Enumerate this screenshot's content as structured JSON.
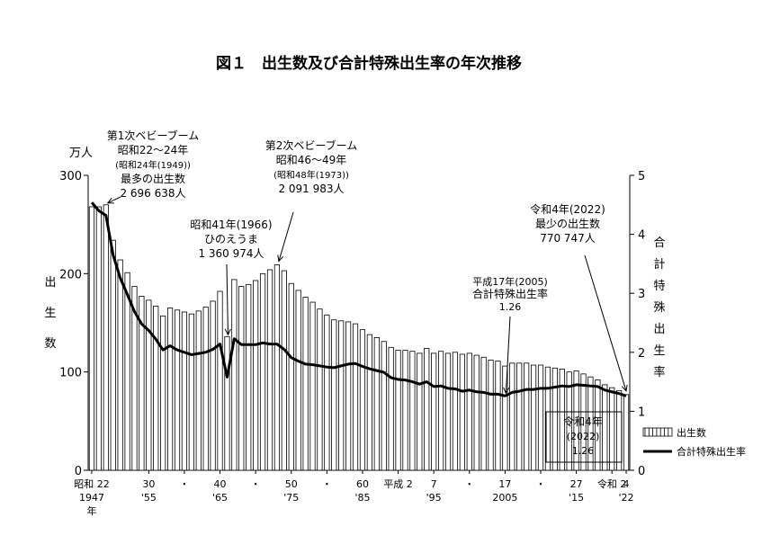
{
  "chart_data": {
    "type": "bar+line",
    "title": "図１　出生数及び合計特殊出生率の年次推移",
    "y_left": {
      "unit": "万人",
      "label": [
        "出",
        "生",
        "数"
      ],
      "range": [
        0,
        300
      ],
      "ticks": [
        "0",
        "100",
        "200",
        "300"
      ]
    },
    "y_right": {
      "label": [
        "合",
        "計",
        "特",
        "殊",
        "出",
        "生",
        "率"
      ],
      "range": [
        0,
        5
      ],
      "ticks": [
        "0",
        "1",
        "2",
        "3",
        "4",
        "5"
      ]
    },
    "x_axis": {
      "row1": [
        {
          "year": 1947,
          "text": "昭和 22"
        },
        {
          "year": 1955,
          "text": "30"
        },
        {
          "year": 1960,
          "text": "・"
        },
        {
          "year": 1965,
          "text": "40"
        },
        {
          "year": 1970,
          "text": "・"
        },
        {
          "year": 1975,
          "text": "50"
        },
        {
          "year": 1980,
          "text": "・"
        },
        {
          "year": 1985,
          "text": "60"
        },
        {
          "year": 1990,
          "text": "平成 2"
        },
        {
          "year": 1995,
          "text": "7"
        },
        {
          "year": 2000,
          "text": "・"
        },
        {
          "year": 2005,
          "text": "17"
        },
        {
          "year": 2010,
          "text": "・"
        },
        {
          "year": 2015,
          "text": "27"
        },
        {
          "year": 2020,
          "text": "令和 2"
        },
        {
          "year": 2022,
          "text": "4"
        }
      ],
      "row2": [
        {
          "year": 1947,
          "text": "1947"
        },
        {
          "year": 1955,
          "text": "'55"
        },
        {
          "year": 1965,
          "text": "'65"
        },
        {
          "year": 1975,
          "text": "'75"
        },
        {
          "year": 1985,
          "text": "'85"
        },
        {
          "year": 1995,
          "text": "'95"
        },
        {
          "year": 2005,
          "text": "2005"
        },
        {
          "year": 2015,
          "text": "'15"
        },
        {
          "year": 2022,
          "text": "'22"
        }
      ],
      "row3": "年"
    },
    "legend": {
      "items": [
        "出生数",
        "合計特殊出生率"
      ],
      "placement": "bottom-right"
    },
    "years": [
      1947,
      1948,
      1949,
      1950,
      1951,
      1952,
      1953,
      1954,
      1955,
      1956,
      1957,
      1958,
      1959,
      1960,
      1961,
      1962,
      1963,
      1964,
      1965,
      1966,
      1967,
      1968,
      1969,
      1970,
      1971,
      1972,
      1973,
      1974,
      1975,
      1976,
      1977,
      1978,
      1979,
      1980,
      1981,
      1982,
      1983,
      1984,
      1985,
      1986,
      1987,
      1988,
      1989,
      1990,
      1991,
      1992,
      1993,
      1994,
      1995,
      1996,
      1997,
      1998,
      1999,
      2000,
      2001,
      2002,
      2003,
      2004,
      2005,
      2006,
      2007,
      2008,
      2009,
      2010,
      2011,
      2012,
      2013,
      2014,
      2015,
      2016,
      2017,
      2018,
      2019,
      2020,
      2021,
      2022
    ],
    "series": [
      {
        "name": "出生数",
        "type": "bar",
        "unit": "万人",
        "values": [
          268,
          268,
          270,
          234,
          214,
          201,
          187,
          177,
          173,
          167,
          157,
          165,
          163,
          161,
          159,
          162,
          166,
          172,
          182,
          136,
          194,
          187,
          189,
          193,
          200,
          204,
          209,
          203,
          190,
          183,
          176,
          171,
          164,
          158,
          153,
          152,
          151,
          149,
          143,
          138,
          135,
          131,
          125,
          122,
          122,
          121,
          119,
          124,
          119,
          121,
          119,
          120,
          118,
          119,
          117,
          115,
          112,
          111,
          106,
          109,
          109,
          109,
          107,
          107,
          105,
          104,
          103,
          100,
          101,
          98,
          95,
          92,
          87,
          84,
          81,
          77
        ]
      },
      {
        "name": "合計特殊出生率",
        "type": "line",
        "values": [
          4.54,
          4.4,
          4.32,
          3.65,
          3.26,
          2.98,
          2.69,
          2.48,
          2.37,
          2.22,
          2.04,
          2.11,
          2.04,
          2.0,
          1.96,
          1.98,
          2.0,
          2.05,
          2.14,
          1.58,
          2.23,
          2.13,
          2.13,
          2.13,
          2.16,
          2.14,
          2.14,
          2.05,
          1.91,
          1.85,
          1.8,
          1.79,
          1.77,
          1.75,
          1.74,
          1.77,
          1.8,
          1.81,
          1.76,
          1.72,
          1.69,
          1.66,
          1.57,
          1.54,
          1.53,
          1.5,
          1.46,
          1.5,
          1.42,
          1.43,
          1.39,
          1.38,
          1.34,
          1.36,
          1.33,
          1.32,
          1.29,
          1.29,
          1.26,
          1.32,
          1.34,
          1.37,
          1.37,
          1.39,
          1.39,
          1.41,
          1.43,
          1.42,
          1.45,
          1.44,
          1.43,
          1.42,
          1.36,
          1.33,
          1.3,
          1.26
        ]
      }
    ],
    "annotations": [
      {
        "lines": [
          "第1次ベビーブーム",
          "昭和22～24年",
          "(昭和24年(1949))",
          "最多の出生数",
          "2 696 638人"
        ]
      },
      {
        "lines": [
          "第2次ベビーブーム",
          "昭和46～49年",
          "(昭和48年(1973))",
          "2 091 983人"
        ]
      },
      {
        "lines": [
          "昭和41年(1966)",
          "ひのえうま",
          "1 360 974人"
        ]
      },
      {
        "lines": [
          "令和4年(2022)",
          "最少の出生数",
          "770 747人"
        ]
      },
      {
        "lines": [
          "平成17年(2005)",
          "合計特殊出生率",
          "1.26"
        ]
      },
      {
        "lines": [
          "令和4年",
          "(2022)",
          "1.26"
        ]
      }
    ]
  }
}
